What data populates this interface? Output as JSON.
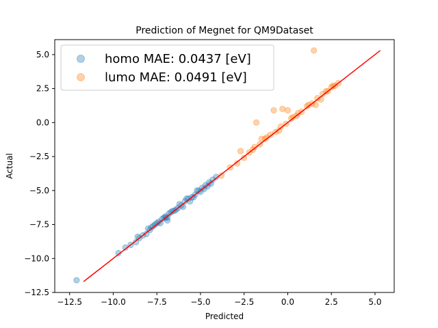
{
  "chart_data": {
    "type": "scatter",
    "title": "Prediction of Megnet for QM9Dataset",
    "xlabel": "Predicted",
    "ylabel": "Actual",
    "xlim": [
      -13.35,
      6.1
    ],
    "ylim": [
      -12.5,
      6.1
    ],
    "xticks": [
      -12.5,
      -10.0,
      -7.5,
      -5.0,
      -2.5,
      0.0,
      2.5,
      5.0
    ],
    "yticks": [
      -12.5,
      -10.0,
      -7.5,
      -5.0,
      -2.5,
      0.0,
      2.5,
      5.0
    ],
    "grid": false,
    "legend_position": "top-left",
    "series": [
      {
        "name": "homo MAE: 0.0437 [eV]",
        "color": "#1f77b4",
        "alpha": 0.35,
        "x": [
          -12.1,
          -9.7,
          -9.3,
          -9.0,
          -8.7,
          -8.5,
          -8.3,
          -8.1,
          -7.9,
          -7.8,
          -7.6,
          -7.5,
          -7.3,
          -7.2,
          -7.0,
          -6.8,
          -6.7,
          -6.5,
          -6.3,
          -6.1,
          -5.9,
          -5.7,
          -5.5,
          -5.3,
          -5.1,
          -4.9,
          -4.7,
          -4.5,
          -4.3,
          -4.1,
          -6.9,
          -7.1,
          -6.0,
          -5.4,
          -4.8,
          -8.0,
          -7.4,
          -6.6,
          -5.2,
          -4.4,
          -7.0,
          -6.2,
          -5.8,
          -4.6,
          -6.4,
          -5.0,
          -8.6,
          -7.7,
          -6.9,
          -5.6
        ],
        "y": [
          -11.6,
          -9.6,
          -9.2,
          -9.0,
          -8.8,
          -8.5,
          -8.3,
          -8.2,
          -7.9,
          -7.7,
          -7.5,
          -7.4,
          -7.4,
          -7.1,
          -7.0,
          -6.7,
          -6.6,
          -6.5,
          -6.3,
          -6.1,
          -5.8,
          -5.6,
          -5.5,
          -5.3,
          -5.0,
          -4.8,
          -4.6,
          -4.4,
          -4.2,
          -4.0,
          -7.2,
          -7.0,
          -6.2,
          -5.5,
          -4.9,
          -7.8,
          -7.3,
          -6.5,
          -5.0,
          -4.5,
          -6.9,
          -6.0,
          -5.6,
          -4.7,
          -6.4,
          -5.1,
          -8.4,
          -7.6,
          -7.0,
          -5.8
        ]
      },
      {
        "name": "lumo MAE: 0.0491 [eV]",
        "color": "#ff7f0e",
        "alpha": 0.35,
        "x": [
          -3.8,
          -3.3,
          -2.9,
          -2.5,
          -2.2,
          -1.9,
          -1.6,
          -1.3,
          -1.0,
          -0.7,
          -0.4,
          -0.1,
          0.2,
          0.5,
          0.8,
          1.1,
          1.4,
          1.7,
          2.0,
          2.3,
          2.5,
          2.7,
          2.9,
          1.5,
          -0.8,
          -0.3,
          0.0,
          -1.8,
          -2.7,
          0.6,
          1.2,
          1.9,
          2.2,
          -1.2,
          -0.5,
          0.3,
          -2.0,
          -1.5,
          2.6,
          1.6
        ],
        "y": [
          -3.9,
          -3.3,
          -3.0,
          -2.6,
          -2.2,
          -1.8,
          -1.6,
          -1.2,
          -0.9,
          -0.7,
          -0.3,
          -0.1,
          0.3,
          0.5,
          0.8,
          1.2,
          1.4,
          1.8,
          2.1,
          2.3,
          2.6,
          2.7,
          2.9,
          5.3,
          0.9,
          1.0,
          0.9,
          0.0,
          -2.1,
          0.7,
          1.3,
          1.7,
          2.3,
          -1.1,
          -0.6,
          0.4,
          -2.0,
          -1.2,
          2.7,
          1.3
        ]
      }
    ],
    "reference_line": {
      "color": "#ff0000",
      "x": [
        -11.7,
        5.3
      ],
      "y": [
        -11.7,
        5.3
      ]
    }
  }
}
